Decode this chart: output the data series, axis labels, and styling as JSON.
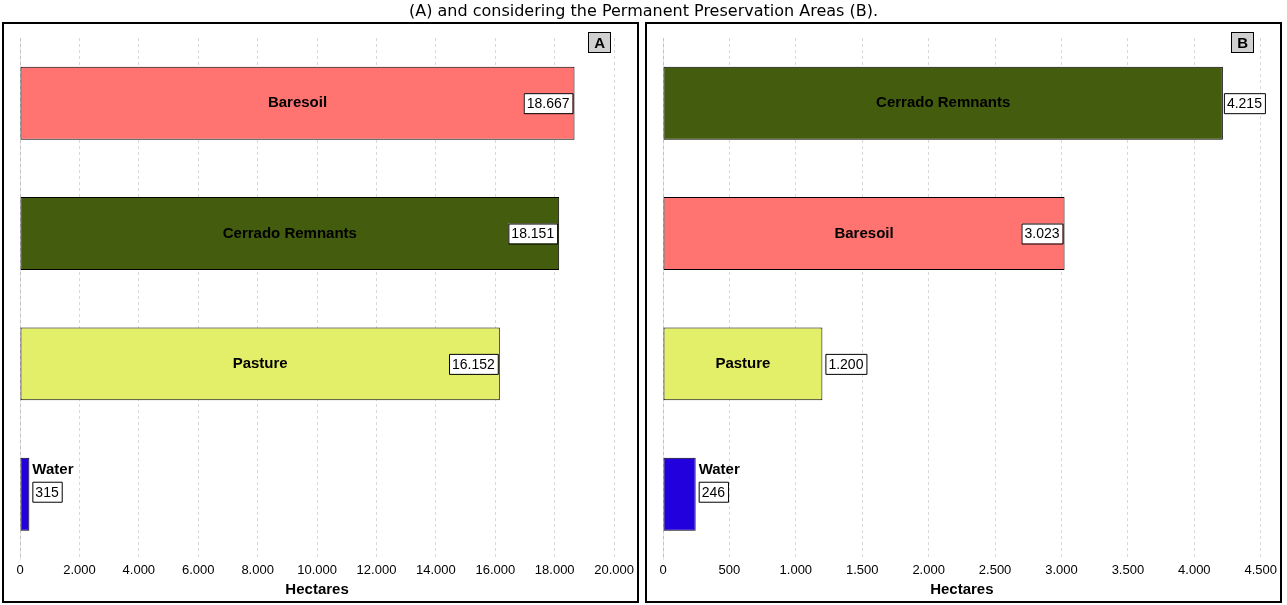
{
  "chart_data": [
    {
      "type": "bar",
      "orientation": "horizontal",
      "categories": [
        "Baresoil",
        "Cerrado Remnants",
        "Pasture",
        "Water"
      ],
      "values": [
        18667,
        18151,
        16152,
        315
      ],
      "value_labels": [
        "18.667",
        "18.151",
        "16.152",
        "315"
      ],
      "colors": [
        "#ff7470",
        "#445c0e",
        "#e3ef69",
        "#2200dd"
      ],
      "xlabel": "Hectares",
      "xlim": [
        0,
        20000
      ],
      "xticks": [
        {
          "value": 0,
          "label": "0"
        },
        {
          "value": 2000,
          "label": "2.000"
        },
        {
          "value": 4000,
          "label": "4.000"
        },
        {
          "value": 6000,
          "label": "6.000"
        },
        {
          "value": 8000,
          "label": "8.000"
        },
        {
          "value": 10000,
          "label": "10.000"
        },
        {
          "value": 12000,
          "label": "12.000"
        },
        {
          "value": 14000,
          "label": "14.000"
        },
        {
          "value": 16000,
          "label": "16.000"
        },
        {
          "value": 18000,
          "label": "18.000"
        },
        {
          "value": 20000,
          "label": "20.000"
        }
      ],
      "grid": "x",
      "tick_labels": "x",
      "legend": false,
      "annotations": [
        "(A) and considering the Permanent Preservation Areas (B).",
        "A"
      ]
    },
    {
      "type": "bar",
      "orientation": "horizontal",
      "categories": [
        "Cerrado Remnants",
        "Baresoil",
        "Pasture",
        "Water"
      ],
      "values": [
        4215,
        3023,
        1200,
        246
      ],
      "value_labels": [
        "4.215",
        "3.023",
        "1.200",
        "246"
      ],
      "colors": [
        "#445c0e",
        "#ff7470",
        "#e3ef69",
        "#2200dd"
      ],
      "xlabel": "Hectares",
      "xlim": [
        0,
        4500
      ],
      "xticks": [
        {
          "value": 0,
          "label": "0"
        },
        {
          "value": 500,
          "label": "500"
        },
        {
          "value": 1000,
          "label": "1.000"
        },
        {
          "value": 1500,
          "label": "1.500"
        },
        {
          "value": 2000,
          "label": "2.000"
        },
        {
          "value": 2500,
          "label": "2.500"
        },
        {
          "value": 3000,
          "label": "3.000"
        },
        {
          "value": 3500,
          "label": "3.500"
        },
        {
          "value": 4000,
          "label": "4.000"
        },
        {
          "value": 4500,
          "label": "4.500"
        }
      ],
      "grid": "x",
      "tick_labels": "x",
      "legend": false,
      "annotations": [
        "B"
      ]
    }
  ]
}
